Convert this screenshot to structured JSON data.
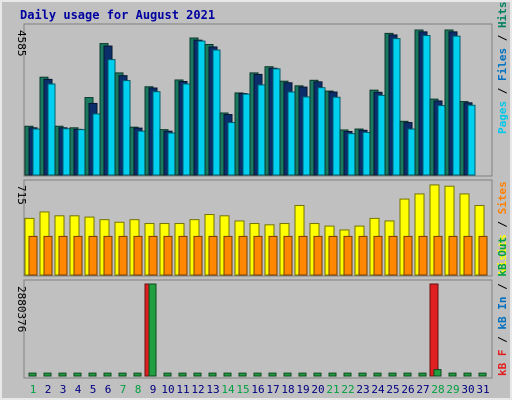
{
  "chart_data": [
    {
      "type": "bar",
      "title": "Daily usage for August 2021",
      "panel": "top",
      "ymax_label": "4585",
      "ylabel_parts": [
        {
          "text": "Pages",
          "color": "#00c8e8"
        },
        {
          "text": "Files",
          "color": "#0070c0"
        },
        {
          "text": "Hits",
          "color": "#008060"
        }
      ],
      "categories": [
        "1",
        "2",
        "3",
        "4",
        "5",
        "6",
        "7",
        "8",
        "9",
        "10",
        "11",
        "12",
        "13",
        "14",
        "15",
        "16",
        "17",
        "18",
        "19",
        "20",
        "21",
        "22",
        "23",
        "24",
        "25",
        "26",
        "27",
        "28",
        "29",
        "30",
        "31"
      ],
      "series": [
        {
          "name": "Hits",
          "color": "#1a7a60",
          "values": [
            1580,
            3170,
            1580,
            1530,
            2510,
            4260,
            3310,
            1550,
            2860,
            1470,
            3080,
            4440,
            4230,
            2010,
            2660,
            3310,
            3510,
            3040,
            2890,
            3070,
            2720,
            1460,
            1490,
            2750,
            4590,
            1740,
            4700,
            2460,
            4700,
            2380,
            null
          ]
        },
        {
          "name": "Files",
          "color": "#0b2e6b",
          "values": [
            1530,
            3100,
            1530,
            1480,
            2320,
            4180,
            3220,
            1520,
            2820,
            1420,
            3030,
            4370,
            4150,
            1960,
            2640,
            3260,
            3460,
            2990,
            2850,
            3020,
            2690,
            1410,
            1450,
            2680,
            4540,
            1700,
            4640,
            2400,
            4640,
            2340,
            null
          ]
        },
        {
          "name": "Pages",
          "color": "#00d0f0",
          "values": [
            1490,
            2950,
            1500,
            1470,
            1980,
            3740,
            3060,
            1420,
            2700,
            1360,
            2950,
            4340,
            4050,
            1700,
            2620,
            2920,
            3440,
            2690,
            2530,
            2830,
            2520,
            1340,
            1380,
            2580,
            4420,
            1490,
            4520,
            2250,
            4500,
            2260,
            null
          ]
        }
      ]
    },
    {
      "type": "bar",
      "panel": "middle",
      "ymax_label": "715",
      "ylabel_parts": [
        {
          "text": "Visits",
          "color": "#ffff00"
        },
        {
          "text": "Sites",
          "color": "#ff8000"
        }
      ],
      "categories": [
        "1",
        "2",
        "3",
        "4",
        "5",
        "6",
        "7",
        "8",
        "9",
        "10",
        "11",
        "12",
        "13",
        "14",
        "15",
        "16",
        "17",
        "18",
        "19",
        "20",
        "21",
        "22",
        "23",
        "24",
        "25",
        "26",
        "27",
        "28",
        "29",
        "30",
        "31"
      ],
      "series": [
        {
          "name": "Visits",
          "color": "#ffff00",
          "values": [
            440,
            490,
            460,
            460,
            450,
            430,
            410,
            430,
            400,
            400,
            400,
            430,
            470,
            460,
            420,
            400,
            390,
            400,
            540,
            400,
            380,
            350,
            380,
            440,
            420,
            590,
            630,
            700,
            690,
            630,
            540
          ]
        },
        {
          "name": "Sites",
          "color": "#ff8800",
          "values": [
            300,
            300,
            300,
            300,
            300,
            300,
            300,
            300,
            300,
            300,
            300,
            300,
            300,
            300,
            300,
            300,
            300,
            300,
            300,
            300,
            300,
            300,
            300,
            300,
            300,
            300,
            300,
            300,
            300,
            300,
            300
          ]
        }
      ]
    },
    {
      "type": "bar",
      "panel": "bottom",
      "ymax_label": "2880376",
      "ylabel_parts": [
        {
          "text": "kB F",
          "color": "#e02020"
        },
        {
          "text": "kB In",
          "color": "#0070c0"
        },
        {
          "text": "kB Out",
          "color": "#00a040"
        }
      ],
      "categories": [
        "1",
        "2",
        "3",
        "4",
        "5",
        "6",
        "7",
        "8",
        "9",
        "10",
        "11",
        "12",
        "13",
        "14",
        "15",
        "16",
        "17",
        "18",
        "19",
        "20",
        "21",
        "22",
        "23",
        "24",
        "25",
        "26",
        "27",
        "28",
        "29",
        "30",
        "31"
      ],
      "series": [
        {
          "name": "kB F",
          "color": "#e02020",
          "values": [
            0,
            0,
            0,
            0,
            0,
            0,
            0,
            0,
            2880376,
            0,
            0,
            0,
            0,
            0,
            0,
            0,
            0,
            0,
            0,
            0,
            0,
            0,
            0,
            0,
            0,
            0,
            0,
            2880376,
            0,
            0,
            0
          ]
        },
        {
          "name": "kB In",
          "color": "#0070c0",
          "values": [
            0,
            0,
            0,
            0,
            0,
            0,
            0,
            0,
            0,
            0,
            0,
            0,
            0,
            0,
            0,
            0,
            0,
            0,
            0,
            0,
            0,
            0,
            0,
            0,
            0,
            0,
            0,
            0,
            0,
            0,
            0
          ]
        },
        {
          "name": "kB Out",
          "color": "#20a040",
          "values": [
            90000,
            90000,
            90000,
            90000,
            90000,
            90000,
            90000,
            90000,
            2880376,
            90000,
            90000,
            90000,
            90000,
            90000,
            90000,
            90000,
            90000,
            90000,
            90000,
            90000,
            90000,
            90000,
            90000,
            90000,
            90000,
            90000,
            90000,
            200000,
            90000,
            90000,
            90000
          ]
        }
      ]
    }
  ],
  "day_label_colors": {
    "weekday": "#000080",
    "weekend": "#00a040"
  },
  "weekend_days": [
    1,
    7,
    8,
    14,
    15,
    21,
    22,
    28,
    29
  ]
}
